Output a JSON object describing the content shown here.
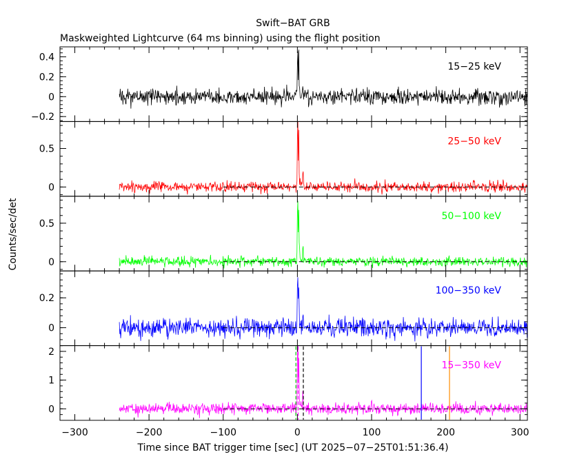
{
  "chart_data": {
    "type": "line",
    "title": "Swift−BAT GRB",
    "subtitle": "Maskweighted Lightcurve (64 ms binning) using the flight position",
    "xlabel": "Time since BAT trigger time [sec] (UT 2025−07−25T01:51:36.4)",
    "ylabel": "Counts/sec/det",
    "xlim": [
      -320,
      310
    ],
    "x_ticks": [
      -300,
      -200,
      -100,
      0,
      100,
      200,
      300
    ],
    "x_tick_labels": [
      "−300",
      "−200",
      "−100",
      "0",
      "100",
      "200",
      "300"
    ],
    "data_start": -240,
    "data_end": 310,
    "panels": [
      {
        "name": "15−25 keV",
        "color": "#000000",
        "ylim": [
          -0.25,
          0.5
        ],
        "y_ticks": [
          -0.2,
          0,
          0.2,
          0.4
        ],
        "y_tick_labels": [
          "−0.2",
          "0",
          "0.2",
          "0.4"
        ],
        "noise_amplitude": 0.055,
        "burst_peak": 0.45,
        "baseline_from": null
      },
      {
        "name": "25−50 keV",
        "color": "#ff0000",
        "ylim": [
          -0.12,
          0.85
        ],
        "y_ticks": [
          0,
          0.5
        ],
        "y_tick_labels": [
          "0",
          "0.5"
        ],
        "noise_amplitude": 0.05,
        "burst_peak": 0.8,
        "baseline_from": -100
      },
      {
        "name": "50−100 keV",
        "color": "#00ff00",
        "ylim": [
          -0.12,
          0.85
        ],
        "y_ticks": [
          0,
          0.5
        ],
        "y_tick_labels": [
          "0",
          "0.5"
        ],
        "noise_amplitude": 0.045,
        "burst_peak": 0.78,
        "baseline_from": -100
      },
      {
        "name": "100−350 keV",
        "color": "#0000ff",
        "ylim": [
          -0.12,
          0.38
        ],
        "y_ticks": [
          0,
          0.2
        ],
        "y_tick_labels": [
          "0",
          "0.2"
        ],
        "noise_amplitude": 0.045,
        "burst_peak": 0.33,
        "baseline_from": -100
      },
      {
        "name": "15−350 keV",
        "color": "#ff00ff",
        "ylim": [
          -0.4,
          2.2
        ],
        "y_ticks": [
          0,
          1,
          2
        ],
        "y_tick_labels": [
          "0",
          "1",
          "2"
        ],
        "noise_amplitude": 0.14,
        "burst_peak": 2.1,
        "baseline_from": -100
      }
    ],
    "markers": [
      {
        "x": -2,
        "color": "#00cc00",
        "style": "dashed",
        "label": ""
      },
      {
        "x": 1,
        "color": "#ff00ff",
        "style": "dashed",
        "label": ""
      },
      {
        "x": 8,
        "color": "#000000",
        "style": "dashed",
        "label": ""
      },
      {
        "x": 167,
        "color": "#0000ff",
        "style": "solid",
        "label": ""
      },
      {
        "x": 205,
        "color": "#ff8c00",
        "style": "solid",
        "label": ""
      }
    ]
  }
}
